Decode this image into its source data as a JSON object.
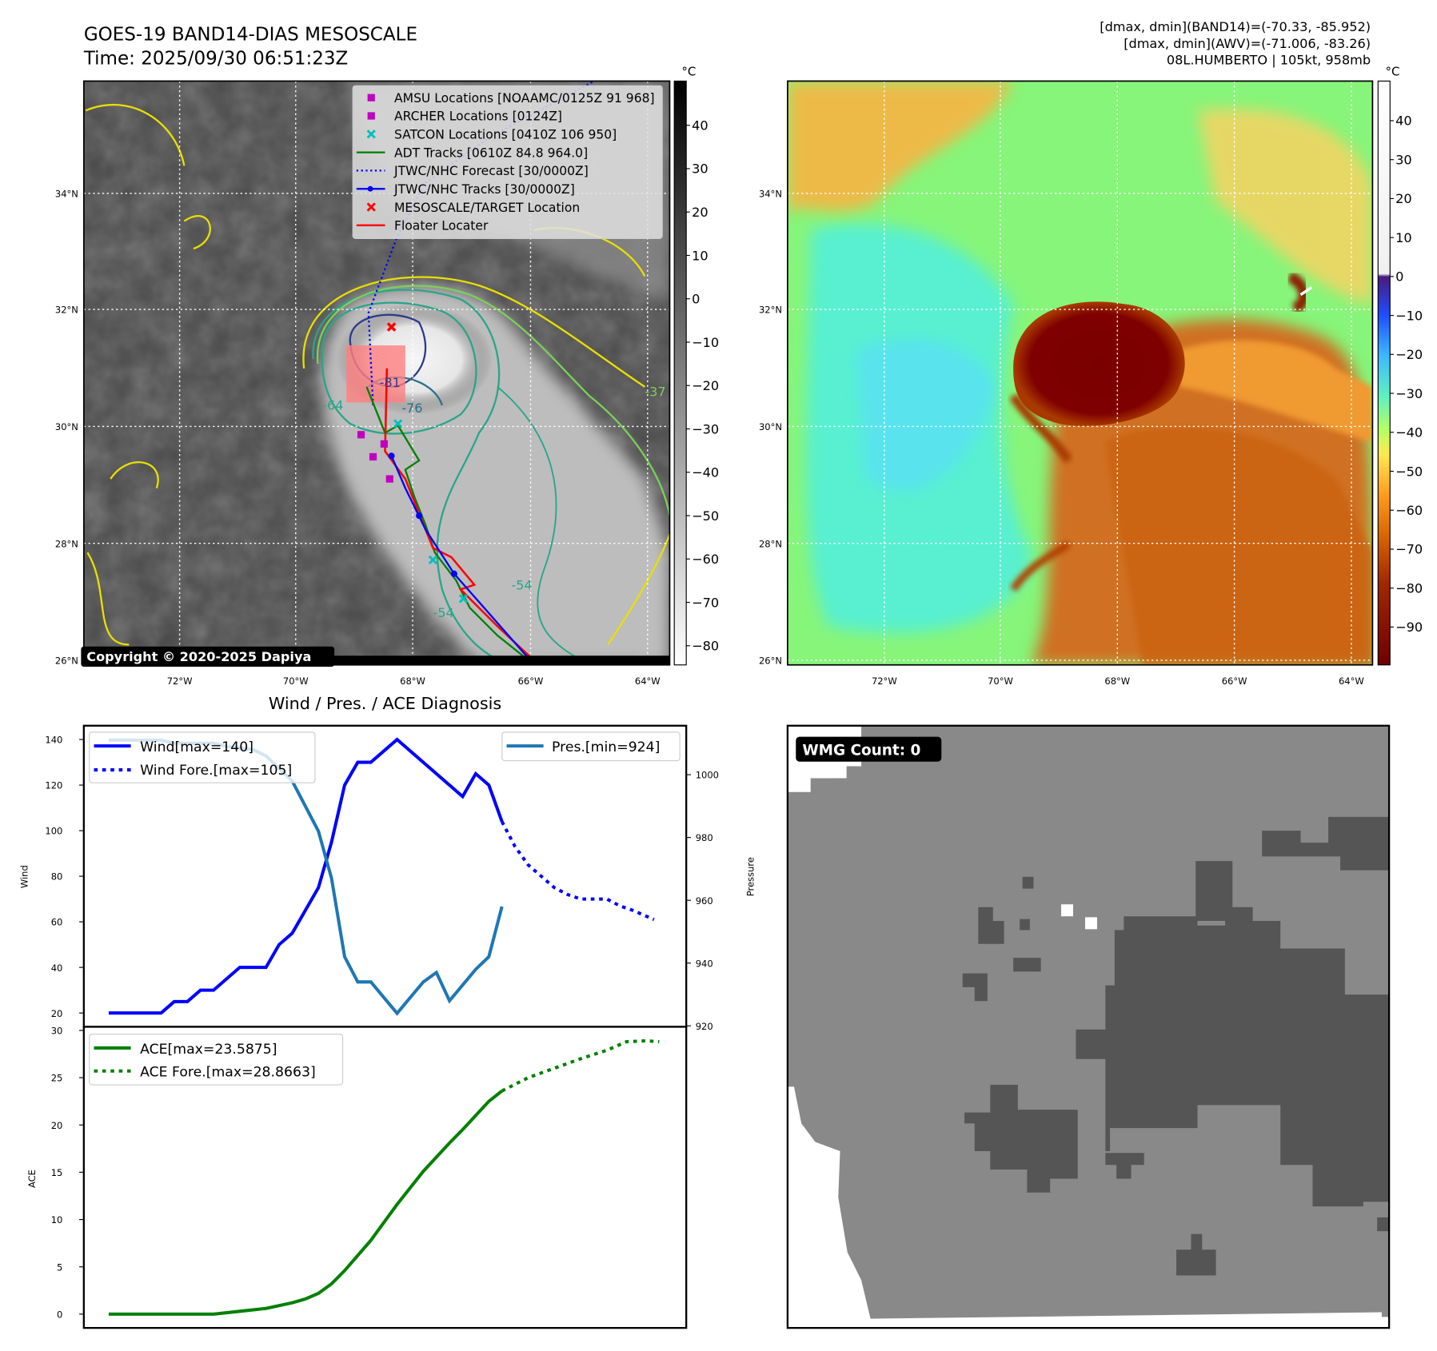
{
  "header": {
    "title": "GOES-19 BAND14-DIAS MESOSCALE",
    "time": "Time: 2025/09/30 06:51:23Z",
    "stats_line1": "[dmax, dmin](BAND14)=(-70.33, -85.952)",
    "stats_line2": "[dmax, dmin](AWV)=(-71.006, -83.26)",
    "storm_line": "08L.HUMBERTO | 105kt, 958mb"
  },
  "map_left": {
    "unit": "°C",
    "colorbar_ticks": [
      "40",
      "30",
      "20",
      "10",
      "0",
      "−10",
      "−20",
      "−30",
      "−40",
      "−50",
      "−60",
      "−70",
      "−80"
    ],
    "lat_labels": [
      "34°N",
      "32°N",
      "30°N",
      "28°N",
      "26°N"
    ],
    "lon_labels": [
      "72°W",
      "70°W",
      "68°W",
      "66°W",
      "64°W"
    ],
    "copyright": "Copyright © 2020-2025 Dapiya",
    "contour_labels": [
      "-81",
      "-76",
      "-64",
      "-54",
      "-54",
      "-37"
    ],
    "legend": [
      {
        "label": "AMSU Locations [NOAAMC/0125Z 91 968]",
        "marker": "square",
        "color": "#c000c0"
      },
      {
        "label": "ARCHER Locations [0124Z]",
        "marker": "square",
        "color": "#c000c0"
      },
      {
        "label": "SATCON Locations [0410Z 106 950]",
        "marker": "x",
        "color": "#00bfbf"
      },
      {
        "label": "ADT Tracks [0610Z 84.8 964.0]",
        "marker": "line",
        "color": "#008000"
      },
      {
        "label": "JTWC/NHC Forecast [30/0000Z]",
        "marker": "dotted",
        "color": "#0000ff"
      },
      {
        "label": "JTWC/NHC Tracks [30/0000Z]",
        "marker": "line-dot",
        "color": "#0000ff"
      },
      {
        "label": "MESOSCALE/TARGET Location",
        "marker": "x",
        "color": "#ff0000"
      },
      {
        "label": "Floater Locater",
        "marker": "line",
        "color": "#ff0000"
      }
    ]
  },
  "map_right": {
    "unit": "°C",
    "colorbar_ticks": [
      "40",
      "30",
      "20",
      "10",
      "0",
      "−10",
      "−20",
      "−30",
      "−40",
      "−50",
      "−60",
      "−70",
      "−80",
      "−90"
    ],
    "lat_labels": [
      "34°N",
      "32°N",
      "30°N",
      "28°N",
      "26°N"
    ],
    "lon_labels": [
      "72°W",
      "70°W",
      "68°W",
      "66°W",
      "64°W"
    ]
  },
  "wmg": {
    "label": "WMG Count: 0"
  },
  "chart_data": [
    {
      "type": "line",
      "title": "Wind / Pres. / ACE Diagnosis",
      "ylabel": "Wind",
      "y2label": "Pressure",
      "ylim": [
        17,
        145
      ],
      "y2lim": [
        920,
        1014
      ],
      "yticks": [
        "20",
        "40",
        "60",
        "80",
        "100",
        "120",
        "140"
      ],
      "y2ticks": [
        "920",
        "940",
        "960",
        "980",
        "1000"
      ],
      "legend_left": [
        "Wind[max=140]",
        "Wind Fore.[max=105]"
      ],
      "legend_right": [
        "Pres.[min=924]"
      ],
      "series": [
        {
          "name": "Wind[max=140]",
          "axis": "left",
          "style": "solid",
          "color": "#0000ff",
          "points": [
            [
              0,
              20
            ],
            [
              4,
              20
            ],
            [
              5,
              25
            ],
            [
              6,
              25
            ],
            [
              7,
              30
            ],
            [
              8,
              30
            ],
            [
              10,
              40
            ],
            [
              12,
              40
            ],
            [
              13,
              50
            ],
            [
              14,
              55
            ],
            [
              16,
              75
            ],
            [
              17,
              95
            ],
            [
              18,
              120
            ],
            [
              19,
              130
            ],
            [
              20,
              130
            ],
            [
              22,
              140
            ],
            [
              27,
              115
            ],
            [
              28,
              125
            ],
            [
              29,
              120
            ],
            [
              30,
              104
            ]
          ]
        },
        {
          "name": "Wind Fore.[max=105]",
          "axis": "left",
          "style": "dotted",
          "color": "#0000ff",
          "points": [
            [
              30,
              104
            ],
            [
              31,
              93
            ],
            [
              32,
              85
            ],
            [
              33,
              80
            ],
            [
              34,
              75
            ],
            [
              35,
              72
            ],
            [
              36,
              70
            ],
            [
              37,
              70
            ],
            [
              38,
              70
            ],
            [
              39,
              67
            ],
            [
              40,
              65
            ],
            [
              41.6,
              61
            ]
          ]
        },
        {
          "name": "Pres.[min=924]",
          "axis": "right",
          "style": "solid",
          "color": "#1f77b4",
          "points": [
            [
              0,
              1011
            ],
            [
              4,
              1011
            ],
            [
              5,
              1010
            ],
            [
              8,
              1010
            ],
            [
              9,
              1009
            ],
            [
              11,
              1008
            ],
            [
              12,
              1006
            ],
            [
              14,
              998
            ],
            [
              16,
              982
            ],
            [
              17,
              967
            ],
            [
              18,
              942
            ],
            [
              19,
              934
            ],
            [
              20,
              934
            ],
            [
              22,
              924
            ],
            [
              24,
              934
            ],
            [
              25,
              937
            ],
            [
              26,
              928
            ],
            [
              28,
              938
            ],
            [
              29,
              942
            ],
            [
              30,
              958
            ]
          ]
        }
      ]
    },
    {
      "type": "line",
      "ylabel": "ACE",
      "ylim": [
        -1,
        30
      ],
      "yticks": [
        "0",
        "5",
        "10",
        "15",
        "20",
        "25",
        "30"
      ],
      "legend": [
        "ACE[max=23.5875]",
        "ACE Fore.[max=28.8663]"
      ],
      "series": [
        {
          "name": "ACE[max=23.5875]",
          "style": "solid",
          "color": "#008000",
          "points": [
            [
              0,
              0
            ],
            [
              8,
              0
            ],
            [
              10,
              0.3
            ],
            [
              12,
              0.6
            ],
            [
              14,
              1.2
            ],
            [
              15,
              1.6
            ],
            [
              16,
              2.2
            ],
            [
              17,
              3.2
            ],
            [
              18,
              4.6
            ],
            [
              20,
              7.8
            ],
            [
              22,
              11.6
            ],
            [
              24,
              15.1
            ],
            [
              26,
              18.1
            ],
            [
              27,
              19.5
            ],
            [
              28,
              21
            ],
            [
              29,
              22.5
            ],
            [
              30,
              23.6
            ]
          ]
        },
        {
          "name": "ACE Fore.[max=28.8663]",
          "style": "dotted",
          "color": "#008000",
          "points": [
            [
              30,
              23.6
            ],
            [
              32,
              25
            ],
            [
              34,
              26
            ],
            [
              36,
              27
            ],
            [
              38,
              27.9
            ],
            [
              39.5,
              28.8
            ],
            [
              41,
              28.9
            ],
            [
              42,
              28.8
            ]
          ]
        }
      ]
    }
  ]
}
